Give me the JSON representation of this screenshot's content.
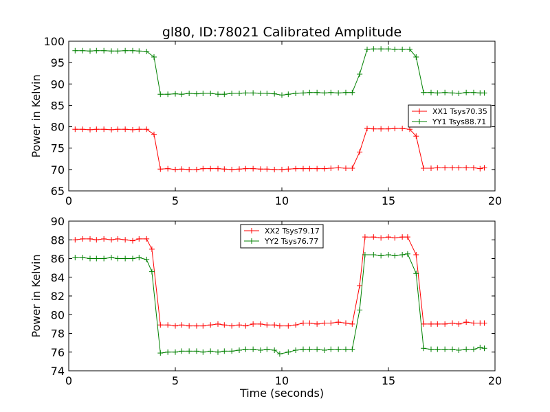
{
  "figure_title": "gl80, ID:78021 Calibrated Amplitude",
  "chart_data": [
    {
      "type": "line",
      "title": "gl80, ID:78021 Calibrated Amplitude",
      "xlabel": "",
      "ylabel": "Power in Kelvin",
      "xlim": [
        0,
        20
      ],
      "ylim": [
        65,
        100
      ],
      "xticks": [
        "0",
        "5",
        "10",
        "15",
        "20"
      ],
      "yticks": [
        "65",
        "70",
        "75",
        "80",
        "85",
        "90",
        "95",
        "100"
      ],
      "grid": false,
      "legend_position": "center-right",
      "marker": "+",
      "x": [
        0.3,
        0.65,
        1.0,
        1.3,
        1.65,
        2.0,
        2.3,
        2.65,
        3.0,
        3.3,
        3.65,
        4.0,
        4.3,
        4.65,
        5.0,
        5.3,
        5.65,
        6.0,
        6.3,
        6.65,
        7.0,
        7.3,
        7.65,
        8.0,
        8.3,
        8.65,
        9.0,
        9.3,
        9.65,
        10.0,
        10.3,
        10.65,
        11.0,
        11.3,
        11.65,
        12.0,
        12.3,
        12.65,
        13.0,
        13.3,
        13.65,
        14.0,
        14.3,
        14.65,
        15.0,
        15.3,
        15.65,
        16.0,
        16.3,
        16.65,
        17.0,
        17.3,
        17.65,
        18.0,
        18.3,
        18.65,
        19.0,
        19.3,
        19.5
      ],
      "series": [
        {
          "name": "XX1 Tsys70.35",
          "color": "#ff0000",
          "values": [
            79.4,
            79.4,
            79.3,
            79.4,
            79.4,
            79.3,
            79.4,
            79.4,
            79.3,
            79.4,
            79.4,
            78.2,
            70.1,
            70.2,
            70.0,
            70.1,
            70.0,
            70.0,
            70.2,
            70.2,
            70.2,
            70.1,
            70.0,
            70.1,
            70.2,
            70.2,
            70.1,
            70.1,
            70.0,
            70.0,
            70.1,
            70.2,
            70.2,
            70.2,
            70.2,
            70.2,
            70.3,
            70.4,
            70.3,
            70.3,
            74.1,
            79.6,
            79.5,
            79.5,
            79.5,
            79.6,
            79.6,
            79.4,
            77.8,
            70.3,
            70.3,
            70.4,
            70.4,
            70.4,
            70.4,
            70.4,
            70.4,
            70.2,
            70.4
          ]
        },
        {
          "name": "YY1 Tsys88.71",
          "color": "#008000",
          "values": [
            97.8,
            97.8,
            97.7,
            97.8,
            97.8,
            97.7,
            97.7,
            97.8,
            97.8,
            97.7,
            97.6,
            96.3,
            87.6,
            87.6,
            87.7,
            87.6,
            87.8,
            87.7,
            87.8,
            87.8,
            87.6,
            87.6,
            87.8,
            87.8,
            87.9,
            87.9,
            87.8,
            87.8,
            87.7,
            87.4,
            87.6,
            87.8,
            87.9,
            88.0,
            88.0,
            87.9,
            88.0,
            87.9,
            88.0,
            88.0,
            92.3,
            98.1,
            98.2,
            98.2,
            98.2,
            98.1,
            98.1,
            98.1,
            96.3,
            88.0,
            88.0,
            87.9,
            88.0,
            87.9,
            87.8,
            88.0,
            88.0,
            87.9,
            87.9
          ]
        }
      ]
    },
    {
      "type": "line",
      "title": "",
      "xlabel": "Time (seconds)",
      "ylabel": "Power in Kelvin",
      "xlim": [
        0,
        20
      ],
      "ylim": [
        74,
        90
      ],
      "xticks": [
        "0",
        "5",
        "10",
        "15",
        "20"
      ],
      "yticks": [
        "74",
        "76",
        "78",
        "80",
        "82",
        "84",
        "86",
        "88",
        "90"
      ],
      "grid": false,
      "legend_position": "top-center",
      "marker": "+",
      "x": [
        0.3,
        0.65,
        1.0,
        1.3,
        1.65,
        2.0,
        2.3,
        2.65,
        3.0,
        3.3,
        3.65,
        3.9,
        4.3,
        4.65,
        5.0,
        5.3,
        5.65,
        6.0,
        6.3,
        6.65,
        7.0,
        7.3,
        7.65,
        8.0,
        8.3,
        8.65,
        9.0,
        9.3,
        9.65,
        9.9,
        10.3,
        10.65,
        11.0,
        11.3,
        11.65,
        12.0,
        12.3,
        12.65,
        13.0,
        13.3,
        13.65,
        13.9,
        14.3,
        14.65,
        15.0,
        15.3,
        15.65,
        15.9,
        16.3,
        16.65,
        17.0,
        17.3,
        17.65,
        18.0,
        18.3,
        18.65,
        19.0,
        19.3,
        19.5
      ],
      "series": [
        {
          "name": "XX2 Tsys79.17",
          "color": "#ff0000",
          "values": [
            88.0,
            88.1,
            88.1,
            88.0,
            88.1,
            88.0,
            88.1,
            88.0,
            87.9,
            88.1,
            88.1,
            87.0,
            78.9,
            78.9,
            78.8,
            78.9,
            78.8,
            78.8,
            78.8,
            78.9,
            79.0,
            78.9,
            78.8,
            78.9,
            78.8,
            79.0,
            79.0,
            78.9,
            78.9,
            78.8,
            78.8,
            78.9,
            79.1,
            79.1,
            79.0,
            79.1,
            79.1,
            79.2,
            79.1,
            79.0,
            83.1,
            88.3,
            88.3,
            88.2,
            88.3,
            88.2,
            88.3,
            88.3,
            86.4,
            79.0,
            79.0,
            79.0,
            79.0,
            79.1,
            79.0,
            79.2,
            79.1,
            79.1,
            79.1
          ]
        },
        {
          "name": "YY2 Tsys76.77",
          "color": "#008000",
          "values": [
            86.1,
            86.1,
            86.0,
            86.0,
            86.0,
            86.1,
            86.0,
            86.0,
            86.0,
            86.1,
            85.9,
            84.6,
            75.9,
            76.0,
            76.0,
            76.1,
            76.1,
            76.1,
            76.0,
            76.1,
            76.0,
            76.1,
            76.1,
            76.2,
            76.3,
            76.3,
            76.2,
            76.3,
            76.2,
            75.8,
            76.0,
            76.2,
            76.3,
            76.3,
            76.3,
            76.2,
            76.3,
            76.3,
            76.3,
            76.3,
            80.5,
            86.4,
            86.4,
            86.3,
            86.4,
            86.3,
            86.4,
            86.5,
            84.4,
            76.4,
            76.3,
            76.3,
            76.3,
            76.3,
            76.2,
            76.3,
            76.3,
            76.5,
            76.4
          ]
        }
      ]
    }
  ]
}
